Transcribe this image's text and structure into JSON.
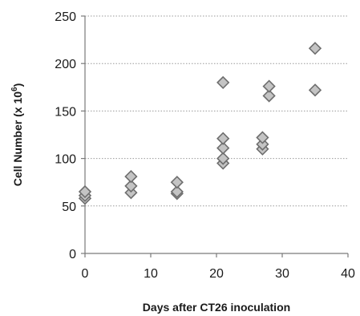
{
  "chart_data": {
    "type": "scatter",
    "title": "",
    "xlabel": "Days after CT26 inoculation",
    "ylabel": "Cell Number  (x 10",
    "ylabel_superscript": "6",
    "ylabel_suffix": ")",
    "xlim": [
      0,
      40
    ],
    "ylim": [
      0,
      250
    ],
    "x_ticks": [
      0,
      10,
      20,
      30,
      40
    ],
    "y_ticks": [
      0,
      50,
      100,
      150,
      200,
      250
    ],
    "grid": "horizontal dotted",
    "marker": "diamond",
    "marker_fill": "#c4c4c4",
    "marker_stroke": "#6e6e6e",
    "series": [
      {
        "points": [
          {
            "x": 0,
            "y": 58
          },
          {
            "x": 0,
            "y": 61
          },
          {
            "x": 0,
            "y": 65
          },
          {
            "x": 7,
            "y": 64
          },
          {
            "x": 7,
            "y": 71
          },
          {
            "x": 7,
            "y": 81
          },
          {
            "x": 14,
            "y": 63
          },
          {
            "x": 14,
            "y": 65
          },
          {
            "x": 14,
            "y": 75
          },
          {
            "x": 21,
            "y": 95
          },
          {
            "x": 21,
            "y": 100
          },
          {
            "x": 21,
            "y": 111
          },
          {
            "x": 21,
            "y": 121
          },
          {
            "x": 21,
            "y": 180
          },
          {
            "x": 27,
            "y": 110
          },
          {
            "x": 27,
            "y": 115
          },
          {
            "x": 27,
            "y": 122
          },
          {
            "x": 28,
            "y": 166
          },
          {
            "x": 28,
            "y": 176
          },
          {
            "x": 35,
            "y": 172
          },
          {
            "x": 35,
            "y": 216
          }
        ]
      }
    ]
  }
}
